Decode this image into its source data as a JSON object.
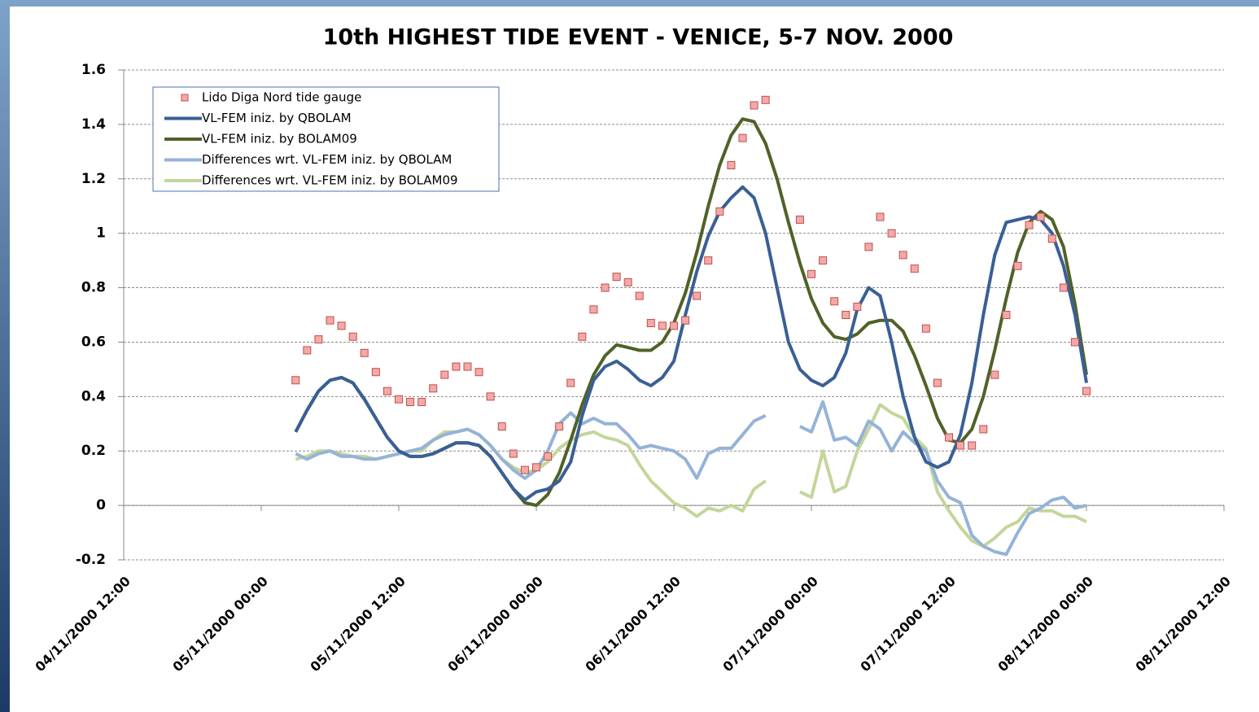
{
  "chart_data": {
    "type": "line",
    "title": "10th HIGHEST TIDE EVENT - VENICE, 5-7 NOV. 2000",
    "x": [
      "2000-11-05T03:00",
      "2000-11-05T04:00",
      "2000-11-05T05:00",
      "2000-11-05T06:00",
      "2000-11-05T07:00",
      "2000-11-05T08:00",
      "2000-11-05T09:00",
      "2000-11-05T10:00",
      "2000-11-05T11:00",
      "2000-11-05T12:00",
      "2000-11-05T13:00",
      "2000-11-05T14:00",
      "2000-11-05T15:00",
      "2000-11-05T16:00",
      "2000-11-05T17:00",
      "2000-11-05T18:00",
      "2000-11-05T19:00",
      "2000-11-05T20:00",
      "2000-11-05T21:00",
      "2000-11-05T22:00",
      "2000-11-05T23:00",
      "2000-11-06T00:00",
      "2000-11-06T01:00",
      "2000-11-06T02:00",
      "2000-11-06T03:00",
      "2000-11-06T04:00",
      "2000-11-06T05:00",
      "2000-11-06T06:00",
      "2000-11-06T07:00",
      "2000-11-06T08:00",
      "2000-11-06T09:00",
      "2000-11-06T10:00",
      "2000-11-06T11:00",
      "2000-11-06T12:00",
      "2000-11-06T13:00",
      "2000-11-06T14:00",
      "2000-11-06T15:00",
      "2000-11-06T16:00",
      "2000-11-06T17:00",
      "2000-11-06T18:00",
      "2000-11-06T19:00",
      "2000-11-06T20:00",
      "2000-11-06T21:00",
      "2000-11-06T22:00",
      "2000-11-06T23:00",
      "2000-11-07T00:00",
      "2000-11-07T01:00",
      "2000-11-07T02:00",
      "2000-11-07T03:00",
      "2000-11-07T04:00",
      "2000-11-07T05:00",
      "2000-11-07T06:00",
      "2000-11-07T07:00",
      "2000-11-07T08:00",
      "2000-11-07T09:00",
      "2000-11-07T10:00",
      "2000-11-07T11:00",
      "2000-11-07T12:00",
      "2000-11-07T13:00",
      "2000-11-07T14:00",
      "2000-11-07T15:00",
      "2000-11-07T16:00",
      "2000-11-07T17:00",
      "2000-11-07T18:00",
      "2000-11-07T19:00",
      "2000-11-07T20:00",
      "2000-11-07T21:00",
      "2000-11-07T22:00",
      "2000-11-07T23:00",
      "2000-11-08T00:00"
    ],
    "series": [
      {
        "name": "Lido Diga Nord tide gauge",
        "mode": "markers",
        "color": "#c0504d",
        "fill": "#f2a9a8",
        "values": [
          0.46,
          0.57,
          0.61,
          0.68,
          0.66,
          0.62,
          0.56,
          0.49,
          0.42,
          0.39,
          0.38,
          0.38,
          0.43,
          0.48,
          0.51,
          0.51,
          0.49,
          0.4,
          0.29,
          0.19,
          0.13,
          0.14,
          0.18,
          0.29,
          0.45,
          0.62,
          0.72,
          0.8,
          0.84,
          0.82,
          0.77,
          0.67,
          0.66,
          0.66,
          0.68,
          0.77,
          0.9,
          1.08,
          1.25,
          1.35,
          1.47,
          1.49,
          null,
          null,
          1.05,
          0.85,
          0.9,
          0.75,
          0.7,
          0.73,
          0.95,
          1.06,
          1.0,
          0.92,
          0.87,
          0.65,
          0.45,
          0.25,
          0.22,
          0.22,
          0.28,
          0.48,
          0.7,
          0.88,
          1.03,
          1.06,
          0.98,
          0.8,
          0.6,
          0.42
        ]
      },
      {
        "name": "VL-FEM iniz. by QBOLAM",
        "mode": "lines",
        "color": "#3a5f95",
        "values": [
          0.27,
          0.35,
          0.42,
          0.46,
          0.47,
          0.45,
          0.39,
          0.32,
          0.25,
          0.2,
          0.18,
          0.18,
          0.19,
          0.21,
          0.23,
          0.23,
          0.22,
          0.18,
          0.12,
          0.06,
          0.02,
          0.05,
          0.06,
          0.09,
          0.16,
          0.33,
          0.46,
          0.51,
          0.53,
          0.5,
          0.46,
          0.44,
          0.47,
          0.53,
          0.7,
          0.86,
          0.99,
          1.08,
          1.13,
          1.17,
          1.13,
          1.0,
          0.8,
          0.6,
          0.5,
          0.46,
          0.44,
          0.47,
          0.56,
          0.72,
          0.8,
          0.77,
          0.6,
          0.4,
          0.25,
          0.16,
          0.14,
          0.16,
          0.26,
          0.45,
          0.7,
          0.92,
          1.04,
          1.05,
          1.06,
          1.05,
          1.0,
          0.88,
          0.7,
          0.45
        ]
      },
      {
        "name": "VL-FEM iniz. by BOLAM09",
        "mode": "lines",
        "color": "#4f6228",
        "values": [
          0.27,
          0.35,
          0.42,
          0.46,
          0.47,
          0.45,
          0.39,
          0.32,
          0.25,
          0.2,
          0.18,
          0.18,
          0.19,
          0.21,
          0.23,
          0.23,
          0.22,
          0.18,
          0.12,
          0.06,
          0.01,
          0.0,
          0.04,
          0.12,
          0.24,
          0.37,
          0.48,
          0.55,
          0.59,
          0.58,
          0.57,
          0.57,
          0.6,
          0.67,
          0.78,
          0.93,
          1.1,
          1.25,
          1.36,
          1.42,
          1.41,
          1.33,
          1.2,
          1.04,
          0.89,
          0.76,
          0.67,
          0.62,
          0.61,
          0.63,
          0.67,
          0.68,
          0.68,
          0.64,
          0.55,
          0.44,
          0.32,
          0.24,
          0.23,
          0.28,
          0.4,
          0.57,
          0.76,
          0.93,
          1.04,
          1.08,
          1.05,
          0.95,
          0.74,
          0.48
        ]
      },
      {
        "name": "Differences wrt. VL-FEM iniz. by QBOLAM",
        "mode": "lines",
        "color": "#95b3d7",
        "values": [
          0.19,
          0.17,
          0.19,
          0.2,
          0.18,
          0.18,
          0.17,
          0.17,
          0.18,
          0.19,
          0.2,
          0.21,
          0.24,
          0.26,
          0.27,
          0.28,
          0.26,
          0.22,
          0.17,
          0.13,
          0.1,
          0.13,
          0.2,
          0.3,
          0.34,
          0.3,
          0.32,
          0.3,
          0.3,
          0.26,
          0.21,
          0.22,
          0.21,
          0.2,
          0.17,
          0.1,
          0.19,
          0.21,
          0.21,
          0.26,
          0.31,
          0.33,
          null,
          null,
          0.29,
          0.27,
          0.38,
          0.24,
          0.25,
          0.22,
          0.31,
          0.28,
          0.2,
          0.27,
          0.23,
          0.2,
          0.09,
          0.03,
          0.01,
          -0.11,
          -0.15,
          -0.17,
          -0.18,
          -0.1,
          -0.03,
          -0.01,
          0.02,
          0.03,
          -0.01,
          0.0
        ]
      },
      {
        "name": "Differences wrt. VL-FEM iniz. by BOLAM09",
        "mode": "lines",
        "color": "#c3d69b",
        "values": [
          0.17,
          0.18,
          0.2,
          0.2,
          0.19,
          0.18,
          0.18,
          0.17,
          0.18,
          0.19,
          0.2,
          0.2,
          0.24,
          0.27,
          0.27,
          0.28,
          0.26,
          0.22,
          0.17,
          0.14,
          0.12,
          0.13,
          0.16,
          0.21,
          0.24,
          0.26,
          0.27,
          0.25,
          0.24,
          0.22,
          0.15,
          0.09,
          0.05,
          0.01,
          -0.01,
          -0.04,
          -0.01,
          -0.02,
          0.0,
          -0.02,
          0.06,
          0.09,
          null,
          null,
          0.05,
          0.03,
          0.2,
          0.05,
          0.07,
          0.2,
          0.28,
          0.37,
          0.34,
          0.32,
          0.25,
          0.21,
          0.05,
          -0.02,
          -0.08,
          -0.13,
          -0.15,
          -0.12,
          -0.08,
          -0.06,
          -0.01,
          -0.02,
          -0.02,
          -0.04,
          -0.04,
          -0.06
        ]
      }
    ],
    "xlim": [
      "2000-11-04T12:00",
      "2000-11-08T12:00"
    ],
    "xticks": [
      {
        "value": "2000-11-04T12:00",
        "label": "04/11/2000 12:00"
      },
      {
        "value": "2000-11-05T00:00",
        "label": "05/11/2000 00:00"
      },
      {
        "value": "2000-11-05T12:00",
        "label": "05/11/2000 12:00"
      },
      {
        "value": "2000-11-06T00:00",
        "label": "06/11/2000 00:00"
      },
      {
        "value": "2000-11-06T12:00",
        "label": "06/11/2000 12:00"
      },
      {
        "value": "2000-11-07T00:00",
        "label": "07/11/2000 00:00"
      },
      {
        "value": "2000-11-07T12:00",
        "label": "07/11/2000 12:00"
      },
      {
        "value": "2000-11-08T00:00",
        "label": "08/11/2000 00:00"
      },
      {
        "value": "2000-11-08T12:00",
        "label": "08/11/2000 12:00"
      }
    ],
    "ylim": [
      -0.2,
      1.6
    ],
    "yticks": [
      1.6,
      1.4,
      1.2,
      1,
      0.8,
      0.6,
      0.4,
      0.2,
      0,
      -0.2
    ],
    "grid": true,
    "legend": "upper left"
  }
}
